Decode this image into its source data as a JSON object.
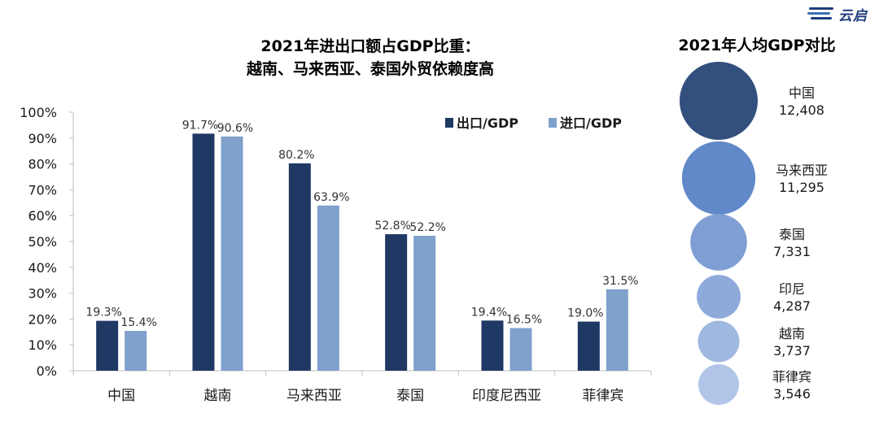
{
  "brand": {
    "name": "云启"
  },
  "colors": {
    "export": "#1f3864",
    "import": "#7fa1cc",
    "axis": "#bfbfbf",
    "text": "#1a1a1a",
    "bubbles": [
      "#334f7e",
      "#6189c9",
      "#7f9fd4",
      "#8eaadb",
      "#9fb8e0",
      "#b1c5e8"
    ]
  },
  "chart_data": [
    {
      "type": "bar",
      "title": "2021年进出口额占GDP比重：",
      "subtitle": "越南、马来西亚、泰国外贸依赖度高",
      "categories": [
        "中国",
        "越南",
        "马来西亚",
        "泰国",
        "印度尼西亚",
        "菲律宾"
      ],
      "series": [
        {
          "name": "出口/GDP",
          "values": [
            19.3,
            91.7,
            80.2,
            52.8,
            19.4,
            19.0
          ]
        },
        {
          "name": "进口/GDP",
          "values": [
            15.4,
            90.6,
            63.9,
            52.2,
            16.5,
            31.5
          ]
        }
      ],
      "ylim": [
        0,
        100
      ],
      "yticks": [
        "0%",
        "10%",
        "20%",
        "30%",
        "40%",
        "50%",
        "60%",
        "70%",
        "80%",
        "90%",
        "100%"
      ],
      "xlabel": "",
      "ylabel": "",
      "legend": "top-right",
      "grid": false
    },
    {
      "type": "bubble",
      "title": "2021年人均GDP对比",
      "items": [
        {
          "name": "中国",
          "value": 12408,
          "label": "12,408"
        },
        {
          "name": "马来西亚",
          "value": 11295,
          "label": "11,295"
        },
        {
          "name": "泰国",
          "value": 7331,
          "label": "7,331"
        },
        {
          "name": "印尼",
          "value": 4287,
          "label": "4,287"
        },
        {
          "name": "越南",
          "value": 3737,
          "label": "3,737"
        },
        {
          "name": "菲律宾",
          "value": 3546,
          "label": "3,546"
        }
      ]
    }
  ]
}
